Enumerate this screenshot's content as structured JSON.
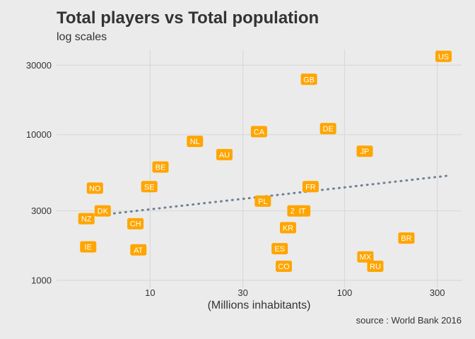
{
  "chart_data": {
    "type": "scatter",
    "title": "Total players vs Total population",
    "subtitle": "log scales",
    "xlabel": "(Millions inhabitants)",
    "ylabel": "",
    "caption": "source : World Bank 2016",
    "x_scale": "log10",
    "y_scale": "log10",
    "xlim": [
      3.3,
      400
    ],
    "ylim": [
      1000,
      40000
    ],
    "x_ticks": [
      10,
      30,
      100,
      300
    ],
    "y_ticks": [
      1000,
      3000,
      10000,
      30000
    ],
    "grid": true,
    "legend": "none",
    "colors": {
      "label_fill": "#FFA500",
      "label_text": "#ffffff",
      "trend_line": "#708090",
      "grid": "#d9d9d9",
      "background": "#ebebeb"
    },
    "points": [
      {
        "label": "US",
        "x": 323,
        "y": 34500
      },
      {
        "label": "GB",
        "x": 65.6,
        "y": 24000
      },
      {
        "label": "CA",
        "x": 36.3,
        "y": 10500
      },
      {
        "label": "DE",
        "x": 82.3,
        "y": 11000
      },
      {
        "label": "NL",
        "x": 17.0,
        "y": 9000
      },
      {
        "label": "JP",
        "x": 127,
        "y": 7700
      },
      {
        "label": "AU",
        "x": 24.1,
        "y": 7300
      },
      {
        "label": "BE",
        "x": 11.3,
        "y": 6000
      },
      {
        "label": "NO",
        "x": 5.2,
        "y": 4300
      },
      {
        "label": "SE",
        "x": 9.9,
        "y": 4400
      },
      {
        "label": "FR",
        "x": 66.9,
        "y": 4400
      },
      {
        "label": "PL",
        "x": 38.0,
        "y": 3500
      },
      {
        "label": "ZA",
        "x": 55.9,
        "y": 3000
      },
      {
        "label": "IT",
        "x": 60.6,
        "y": 3000
      },
      {
        "label": "DK",
        "x": 5.7,
        "y": 3000
      },
      {
        "label": "NZ",
        "x": 4.7,
        "y": 2650
      },
      {
        "label": "CH",
        "x": 8.4,
        "y": 2450
      },
      {
        "label": "KR",
        "x": 51.2,
        "y": 2300
      },
      {
        "label": "BR",
        "x": 208,
        "y": 1950
      },
      {
        "label": "IE",
        "x": 4.8,
        "y": 1700
      },
      {
        "label": "AT",
        "x": 8.7,
        "y": 1620
      },
      {
        "label": "ES",
        "x": 46.4,
        "y": 1650
      },
      {
        "label": "MX",
        "x": 128,
        "y": 1450
      },
      {
        "label": "CO",
        "x": 48.7,
        "y": 1250
      },
      {
        "label": "RU",
        "x": 144,
        "y": 1250
      }
    ],
    "trend": {
      "x": [
        5,
        350
      ],
      "y": [
        2770,
        5250
      ]
    }
  }
}
